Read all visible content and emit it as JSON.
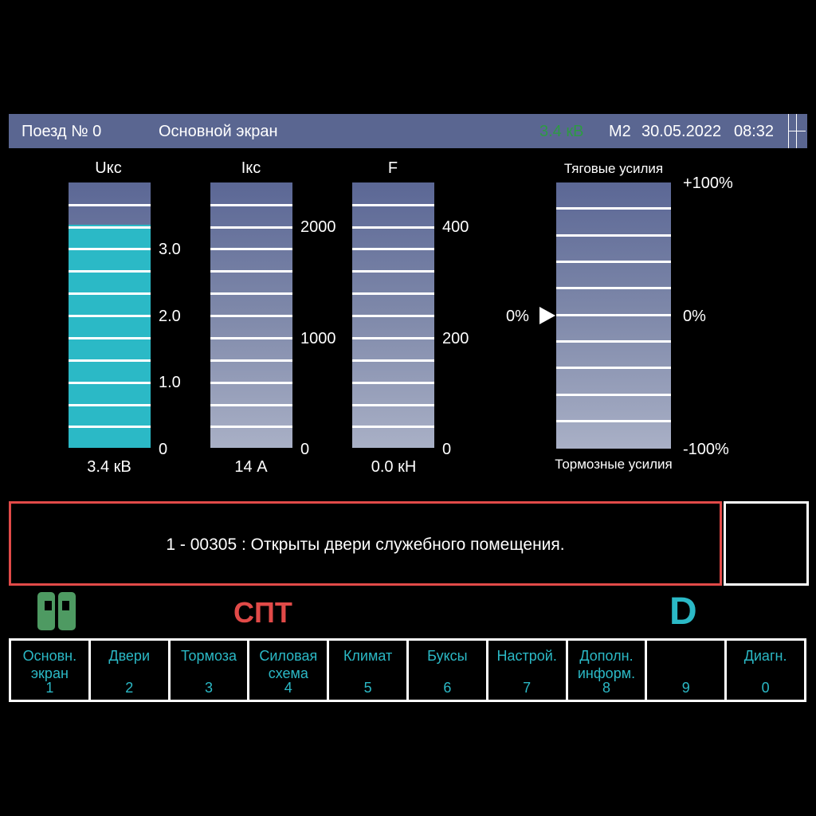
{
  "header": {
    "train": "Поезд № 0",
    "screen": "Основной экран",
    "voltage": "3.4 кВ",
    "car": "М2",
    "date": "30.05.2022",
    "time": "08:32"
  },
  "gauges": [
    {
      "title": "Uкс",
      "scale": [
        "3.0",
        "2.0",
        "1.0",
        "0"
      ],
      "value_text": "3.4 кВ",
      "fill_fraction": 0.84,
      "fill_color": "#2bb9c6"
    },
    {
      "title": "Iкс",
      "scale": [
        "2000",
        "1000",
        "0"
      ],
      "value_text": "14 А",
      "fill_fraction": 0
    },
    {
      "title": "F",
      "scale": [
        "400",
        "200",
        "0"
      ],
      "value_text": "0.0 кН",
      "fill_fraction": 0
    }
  ],
  "traction": {
    "title": "Тяговые усилия",
    "bottom_title": "Тормозные усилия",
    "scale_top": "+100%",
    "scale_mid": "0%",
    "scale_bottom": "-100%",
    "pointer_label": "0%",
    "pointer_value_percent": 0
  },
  "message": {
    "text": "1 - 00305 : Открыты двери служебного помещения.",
    "border_color": "#e14a48"
  },
  "indicators": {
    "door_icon": "door-icon",
    "door_color": "#4e9a62",
    "spt": "СПТ",
    "spt_color": "#e14a48",
    "direction": "D",
    "direction_color": "#2bb9c6"
  },
  "function_keys": [
    {
      "label": "Основн.\nэкран",
      "num": "1"
    },
    {
      "label": "Двери",
      "num": "2"
    },
    {
      "label": "Тормоза",
      "num": "3"
    },
    {
      "label": "Силовая\nсхема",
      "num": "4"
    },
    {
      "label": "Климат",
      "num": "5"
    },
    {
      "label": "Буксы",
      "num": "6"
    },
    {
      "label": "Настрой.",
      "num": "7"
    },
    {
      "label": "Дополн.\nинформ.",
      "num": "8"
    },
    {
      "label": "",
      "num": "9"
    },
    {
      "label": "Диагн.",
      "num": "0"
    }
  ],
  "colors": {
    "header_bg": "#5a6691",
    "accent": "#2bb9c6",
    "voltage_green": "#2e9a44"
  }
}
